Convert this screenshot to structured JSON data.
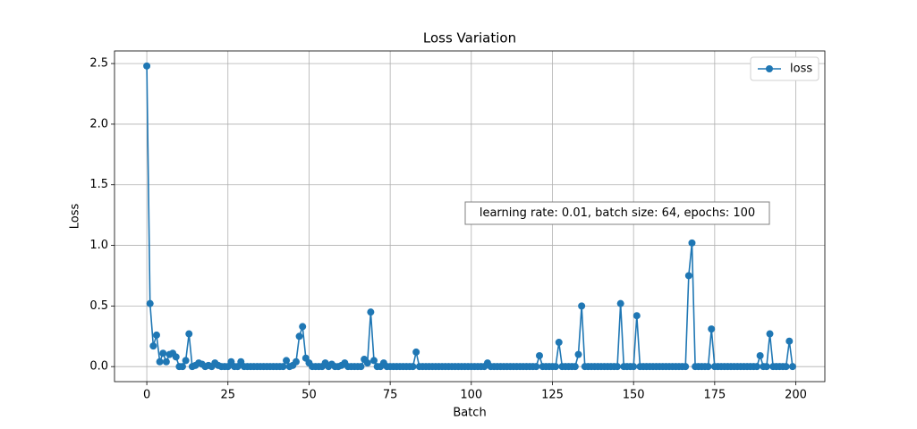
{
  "chart_data": {
    "type": "line",
    "title": "Loss Variation",
    "x_label": "Batch",
    "y_label": "Loss",
    "annotation": "learning rate: 0.01, batch size: 64, epochs: 100",
    "legend": "upper right",
    "grid": true,
    "xlim": [
      -9.95,
      208.95
    ],
    "ylim": [
      -0.124,
      2.604
    ],
    "xticks": [
      0,
      25,
      50,
      75,
      100,
      125,
      150,
      175,
      200
    ],
    "yticks": [
      {
        "value": 0,
        "label": "0.0"
      },
      0.5,
      {
        "value": 1,
        "label": "1.0"
      },
      1.5,
      {
        "value": 2,
        "label": "2.0"
      },
      2.5
    ],
    "x": [
      0,
      1,
      2,
      3,
      4,
      5,
      6,
      7,
      8,
      9,
      10,
      11,
      12,
      13,
      14,
      15,
      16,
      17,
      18,
      19,
      20,
      21,
      22,
      23,
      24,
      25,
      26,
      27,
      28,
      29,
      30,
      31,
      32,
      33,
      34,
      35,
      36,
      37,
      38,
      39,
      40,
      41,
      42,
      43,
      44,
      45,
      46,
      47,
      48,
      49,
      50,
      51,
      52,
      53,
      54,
      55,
      56,
      57,
      58,
      59,
      60,
      61,
      62,
      63,
      64,
      65,
      66,
      67,
      68,
      69,
      70,
      71,
      72,
      73,
      74,
      75,
      76,
      77,
      78,
      79,
      80,
      81,
      82,
      83,
      84,
      85,
      86,
      87,
      88,
      89,
      90,
      91,
      92,
      93,
      94,
      95,
      96,
      97,
      98,
      99,
      100,
      101,
      102,
      103,
      104,
      105,
      106,
      107,
      108,
      109,
      110,
      111,
      112,
      113,
      114,
      115,
      116,
      117,
      118,
      119,
      120,
      121,
      122,
      123,
      124,
      125,
      126,
      127,
      128,
      129,
      130,
      131,
      132,
      133,
      134,
      135,
      136,
      137,
      138,
      139,
      140,
      141,
      142,
      143,
      144,
      145,
      146,
      147,
      148,
      149,
      150,
      151,
      152,
      153,
      154,
      155,
      156,
      157,
      158,
      159,
      160,
      161,
      162,
      163,
      164,
      165,
      166,
      167,
      168,
      169,
      170,
      171,
      172,
      173,
      174,
      175,
      176,
      177,
      178,
      179,
      180,
      181,
      182,
      183,
      184,
      185,
      186,
      187,
      188,
      189,
      190,
      191,
      192,
      193,
      194,
      195,
      196,
      197,
      198,
      199
    ],
    "series": [
      {
        "name": "loss",
        "color": "#1f77b4",
        "values": [
          2.48,
          0.52,
          0.17,
          0.26,
          0.04,
          0.11,
          0.04,
          0.1,
          0.11,
          0.08,
          0,
          0,
          0.05,
          0.27,
          0,
          0.01,
          0.03,
          0.02,
          0,
          0.01,
          0,
          0.03,
          0.01,
          0,
          0,
          0,
          0.04,
          0,
          0,
          0.04,
          0,
          0,
          0,
          0,
          0,
          0,
          0,
          0,
          0,
          0,
          0,
          0,
          0,
          0.05,
          0,
          0.01,
          0.04,
          0.25,
          0.33,
          0.07,
          0.03,
          0,
          0,
          0,
          0,
          0.03,
          0,
          0.02,
          0,
          0,
          0.01,
          0.03,
          0,
          0,
          0,
          0,
          0,
          0.06,
          0.03,
          0.45,
          0.05,
          0,
          0,
          0.03,
          0,
          0,
          0,
          0,
          0,
          0,
          0,
          0,
          0,
          0.12,
          0,
          0,
          0,
          0,
          0,
          0,
          0,
          0,
          0,
          0,
          0,
          0,
          0,
          0,
          0,
          0,
          0,
          0,
          0,
          0,
          0,
          0.03,
          0,
          0,
          0,
          0,
          0,
          0,
          0,
          0,
          0,
          0,
          0,
          0,
          0,
          0,
          0,
          0.09,
          0,
          0,
          0,
          0,
          0,
          0.2,
          0,
          0,
          0,
          0,
          0,
          0.1,
          0.5,
          0,
          0,
          0,
          0,
          0,
          0,
          0,
          0,
          0,
          0,
          0,
          0.52,
          0,
          0,
          0,
          0,
          0.42,
          0,
          0,
          0,
          0,
          0,
          0,
          0,
          0,
          0,
          0,
          0,
          0,
          0,
          0,
          0,
          0.75,
          1.02,
          0,
          0,
          0,
          0,
          0,
          0.31,
          0,
          0,
          0,
          0,
          0,
          0,
          0,
          0,
          0,
          0,
          0,
          0,
          0,
          0,
          0.09,
          0,
          0,
          0.27,
          0,
          0,
          0,
          0,
          0,
          0.21,
          0
        ]
      }
    ]
  }
}
